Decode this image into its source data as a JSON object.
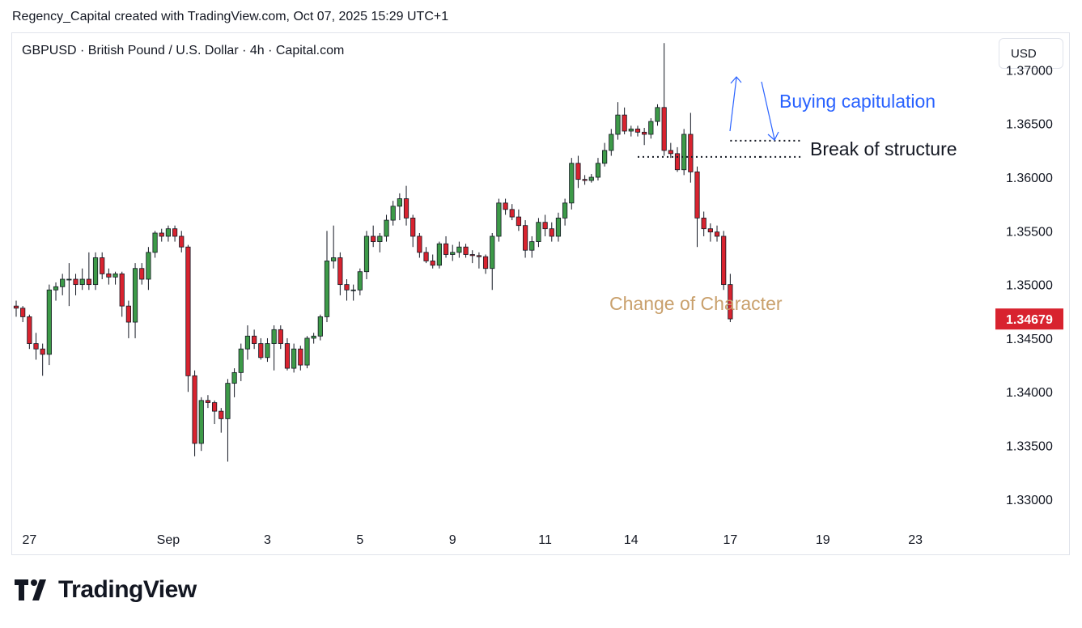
{
  "header": {
    "text": "Regency_Capital created with TradingView.com, Oct 07, 2025 15:29 UTC+1"
  },
  "symbol_line": "GBPUSD · British Pound / U.S. Dollar · 4h · Capital.com",
  "currency_button": "USD",
  "brand": {
    "name": "TradingView"
  },
  "colors": {
    "up": "#3d9a48",
    "down": "#d8232f",
    "buying_capitulation": "#2962ff",
    "choch": "#c9a06c",
    "last_price_bg": "#d8232f"
  },
  "chart_data": {
    "type": "candlestick",
    "symbol": "GBPUSD",
    "timeframe": "4h",
    "ylim": [
      1.3275,
      1.3735
    ],
    "y_ticks": [
      "1.37000",
      "1.36500",
      "1.36000",
      "1.35500",
      "1.35000",
      "1.34500",
      "1.34000",
      "1.33500",
      "1.33000"
    ],
    "x_ticks": [
      {
        "label": "27",
        "index": 2
      },
      {
        "label": "Sep",
        "index": 23
      },
      {
        "label": "3",
        "index": 38
      },
      {
        "label": "5",
        "index": 52
      },
      {
        "label": "9",
        "index": 66
      },
      {
        "label": "11",
        "index": 80
      },
      {
        "label": "14",
        "index": 93
      },
      {
        "label": "17",
        "index": 108
      },
      {
        "label": "19",
        "index": 122
      },
      {
        "label": "23",
        "index": 136
      }
    ],
    "last_price": "1.34679",
    "candles": [
      [
        1.348,
        1.3485,
        1.347,
        1.3478
      ],
      [
        1.3478,
        1.348,
        1.3465,
        1.347
      ],
      [
        1.347,
        1.3472,
        1.344,
        1.3445
      ],
      [
        1.3445,
        1.3455,
        1.343,
        1.344
      ],
      [
        1.344,
        1.3445,
        1.3415,
        1.3435
      ],
      [
        1.3435,
        1.35,
        1.3425,
        1.3495
      ],
      [
        1.3495,
        1.3502,
        1.3485,
        1.3498
      ],
      [
        1.3498,
        1.351,
        1.349,
        1.3505
      ],
      [
        1.3505,
        1.352,
        1.348,
        1.3505
      ],
      [
        1.3505,
        1.351,
        1.349,
        1.35
      ],
      [
        1.35,
        1.3515,
        1.3495,
        1.3505
      ],
      [
        1.3505,
        1.353,
        1.3495,
        1.35
      ],
      [
        1.35,
        1.353,
        1.3495,
        1.3525
      ],
      [
        1.3525,
        1.353,
        1.3505,
        1.351
      ],
      [
        1.351,
        1.3515,
        1.35,
        1.3507
      ],
      [
        1.3507,
        1.3512,
        1.35,
        1.351
      ],
      [
        1.351,
        1.3512,
        1.347,
        1.348
      ],
      [
        1.348,
        1.3485,
        1.345,
        1.3465
      ],
      [
        1.3465,
        1.352,
        1.345,
        1.3515
      ],
      [
        1.3515,
        1.352,
        1.35,
        1.3505
      ],
      [
        1.3505,
        1.3535,
        1.3495,
        1.353
      ],
      [
        1.353,
        1.355,
        1.3525,
        1.3548
      ],
      [
        1.3548,
        1.3552,
        1.354,
        1.3545
      ],
      [
        1.3545,
        1.3555,
        1.354,
        1.3552
      ],
      [
        1.3552,
        1.3555,
        1.354,
        1.3545
      ],
      [
        1.3545,
        1.355,
        1.353,
        1.3535
      ],
      [
        1.3535,
        1.3537,
        1.34,
        1.3415
      ],
      [
        1.3415,
        1.342,
        1.334,
        1.3352
      ],
      [
        1.3352,
        1.3395,
        1.3345,
        1.3392
      ],
      [
        1.3392,
        1.3397,
        1.3385,
        1.339
      ],
      [
        1.339,
        1.3392,
        1.337,
        1.3382
      ],
      [
        1.3382,
        1.3385,
        1.3362,
        1.3375
      ],
      [
        1.3375,
        1.3412,
        1.3335,
        1.3408
      ],
      [
        1.3408,
        1.3422,
        1.3395,
        1.3418
      ],
      [
        1.3418,
        1.3445,
        1.341,
        1.344
      ],
      [
        1.344,
        1.3462,
        1.343,
        1.3452
      ],
      [
        1.3452,
        1.3458,
        1.344,
        1.3445
      ],
      [
        1.3445,
        1.345,
        1.343,
        1.3432
      ],
      [
        1.3432,
        1.345,
        1.3428,
        1.3445
      ],
      [
        1.3445,
        1.3462,
        1.342,
        1.3458
      ],
      [
        1.3458,
        1.3462,
        1.344,
        1.3445
      ],
      [
        1.3445,
        1.345,
        1.342,
        1.3422
      ],
      [
        1.3422,
        1.3445,
        1.3418,
        1.344
      ],
      [
        1.344,
        1.3443,
        1.342,
        1.3425
      ],
      [
        1.3425,
        1.3452,
        1.3422,
        1.345
      ],
      [
        1.345,
        1.3455,
        1.3445,
        1.3452
      ],
      [
        1.3452,
        1.3472,
        1.3448,
        1.347
      ],
      [
        1.347,
        1.355,
        1.3465,
        1.3522
      ],
      [
        1.3522,
        1.3555,
        1.3515,
        1.3525
      ],
      [
        1.3525,
        1.353,
        1.349,
        1.35
      ],
      [
        1.35,
        1.3505,
        1.3485,
        1.3495
      ],
      [
        1.3495,
        1.35,
        1.3485,
        1.3495
      ],
      [
        1.3495,
        1.3515,
        1.349,
        1.3512
      ],
      [
        1.3512,
        1.355,
        1.3505,
        1.3545
      ],
      [
        1.3545,
        1.3555,
        1.3535,
        1.354
      ],
      [
        1.354,
        1.3548,
        1.353,
        1.3545
      ],
      [
        1.3545,
        1.3565,
        1.354,
        1.356
      ],
      [
        1.356,
        1.3578,
        1.3555,
        1.3573
      ],
      [
        1.3573,
        1.3585,
        1.356,
        1.358
      ],
      [
        1.358,
        1.3592,
        1.3555,
        1.3562
      ],
      [
        1.3562,
        1.3565,
        1.3535,
        1.3545
      ],
      [
        1.3545,
        1.3548,
        1.3525,
        1.353
      ],
      [
        1.353,
        1.3535,
        1.352,
        1.3522
      ],
      [
        1.3522,
        1.3528,
        1.3515,
        1.3518
      ],
      [
        1.3518,
        1.354,
        1.3515,
        1.3538
      ],
      [
        1.3538,
        1.3545,
        1.3525,
        1.3528
      ],
      [
        1.3528,
        1.3537,
        1.3522,
        1.353
      ],
      [
        1.353,
        1.354,
        1.3525,
        1.3535
      ],
      [
        1.3535,
        1.3538,
        1.3525,
        1.3528
      ],
      [
        1.3528,
        1.3532,
        1.352,
        1.3527
      ],
      [
        1.3527,
        1.353,
        1.3515,
        1.3526
      ],
      [
        1.3526,
        1.3528,
        1.351,
        1.3515
      ],
      [
        1.3515,
        1.3548,
        1.3495,
        1.3545
      ],
      [
        1.3545,
        1.358,
        1.354,
        1.3576
      ],
      [
        1.3576,
        1.358,
        1.3565,
        1.357
      ],
      [
        1.357,
        1.3575,
        1.356,
        1.3563
      ],
      [
        1.3563,
        1.357,
        1.355,
        1.3555
      ],
      [
        1.3555,
        1.356,
        1.3525,
        1.3532
      ],
      [
        1.3532,
        1.3545,
        1.3525,
        1.354
      ],
      [
        1.354,
        1.3562,
        1.3535,
        1.3558
      ],
      [
        1.3558,
        1.3565,
        1.3545,
        1.3552
      ],
      [
        1.3552,
        1.3558,
        1.354,
        1.3545
      ],
      [
        1.3545,
        1.3567,
        1.354,
        1.3562
      ],
      [
        1.3562,
        1.358,
        1.3555,
        1.3576
      ],
      [
        1.3576,
        1.3618,
        1.357,
        1.3613
      ],
      [
        1.3613,
        1.362,
        1.359,
        1.3598
      ],
      [
        1.3598,
        1.3602,
        1.3593,
        1.3597
      ],
      [
        1.3597,
        1.3603,
        1.3595,
        1.36
      ],
      [
        1.36,
        1.3618,
        1.3597,
        1.3613
      ],
      [
        1.3613,
        1.3632,
        1.361,
        1.3625
      ],
      [
        1.3625,
        1.3645,
        1.362,
        1.364
      ],
      [
        1.364,
        1.367,
        1.3635,
        1.3658
      ],
      [
        1.3658,
        1.3665,
        1.364,
        1.3643
      ],
      [
        1.3643,
        1.3648,
        1.3638,
        1.3645
      ],
      [
        1.3645,
        1.3648,
        1.3638,
        1.3642
      ],
      [
        1.3642,
        1.3646,
        1.363,
        1.364
      ],
      [
        1.364,
        1.3655,
        1.3636,
        1.3652
      ],
      [
        1.3652,
        1.3668,
        1.3648,
        1.3665
      ],
      [
        1.3665,
        1.3725,
        1.362,
        1.3625
      ],
      [
        1.3625,
        1.3632,
        1.3618,
        1.3622
      ],
      [
        1.3622,
        1.3628,
        1.3605,
        1.3607
      ],
      [
        1.3607,
        1.3645,
        1.3602,
        1.364
      ],
      [
        1.364,
        1.366,
        1.3595,
        1.3605
      ],
      [
        1.3605,
        1.361,
        1.3535,
        1.3562
      ],
      [
        1.3562,
        1.3568,
        1.3545,
        1.3552
      ],
      [
        1.3552,
        1.3557,
        1.354,
        1.3549
      ],
      [
        1.3549,
        1.3555,
        1.354,
        1.3545
      ],
      [
        1.3545,
        1.355,
        1.3495,
        1.35
      ],
      [
        1.35,
        1.351,
        1.3465,
        1.3468
      ]
    ],
    "annotations": {
      "buying_capitulation": "Buying capitulation",
      "break_of_structure": "Break of structure",
      "change_of_character": "Change of Character"
    }
  }
}
